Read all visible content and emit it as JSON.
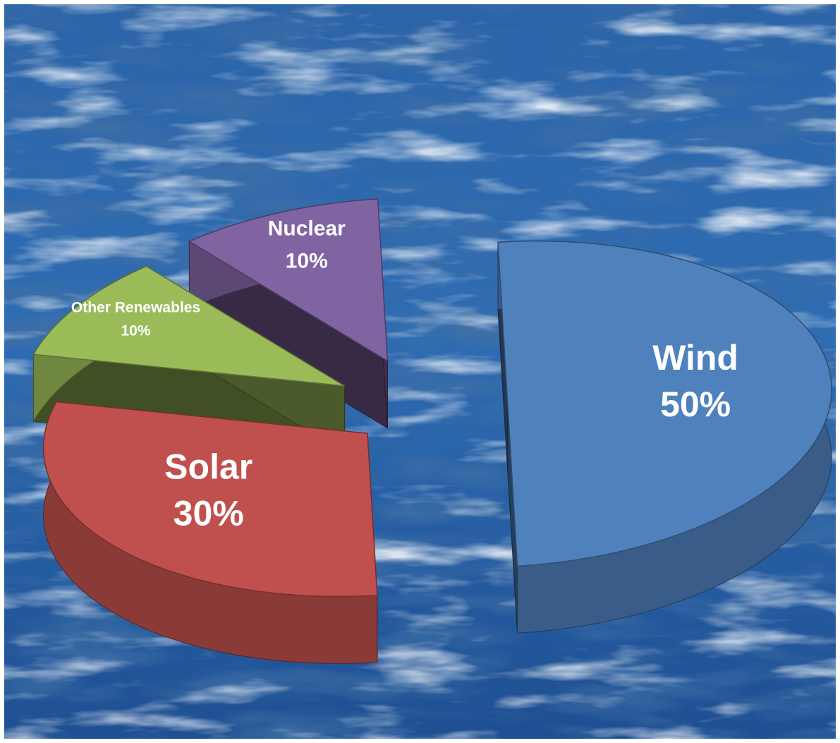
{
  "chart_data": {
    "type": "pie",
    "style": "3d-exploded",
    "background": "ocean-water",
    "title": "",
    "slices": [
      {
        "name": "Wind",
        "label": "Wind",
        "value": 50,
        "value_label": "50%",
        "color": "#4f81bd"
      },
      {
        "name": "Solar",
        "label": "Solar",
        "value": 30,
        "value_label": "30%",
        "color": "#c0504d"
      },
      {
        "name": "Other Renewables",
        "label": "Other Renewables",
        "value": 10,
        "value_label": "10%",
        "color": "#9bbb59"
      },
      {
        "name": "Nuclear",
        "label": "Nuclear",
        "value": 10,
        "value_label": "10%",
        "color": "#8064a2"
      }
    ]
  }
}
